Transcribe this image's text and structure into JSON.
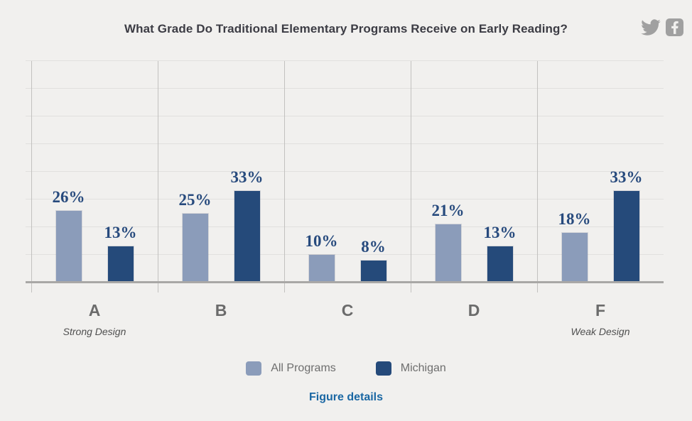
{
  "page": {
    "title": "What Grade Do Traditional Elementary Programs Receive on Early Reading?",
    "figure_details_label": "Figure details"
  },
  "icons": [
    {
      "name": "twitter-icon"
    },
    {
      "name": "facebook-icon"
    }
  ],
  "colors": {
    "background": "#f1f0ee",
    "all_programs_bar": "#8b9cba",
    "michigan_bar": "#254a7a",
    "value_label": "#274a7d",
    "category_label": "#6b6b6b",
    "link": "#1a67a3",
    "social_icon": "#a0a0a0"
  },
  "legend": [
    {
      "label": "All Programs",
      "color": "#8b9cba"
    },
    {
      "label": "Michigan",
      "color": "#254a7a"
    }
  ],
  "chart_data": {
    "type": "bar",
    "title": "What Grade Do Traditional Elementary Programs Receive on Early Reading?",
    "categories": [
      "A",
      "B",
      "C",
      "D",
      "F"
    ],
    "series": [
      {
        "name": "All Programs",
        "color": "#8b9cba",
        "values": [
          26,
          25,
          10,
          21,
          18
        ]
      },
      {
        "name": "Michigan",
        "color": "#254a7a",
        "values": [
          13,
          33,
          8,
          13,
          33
        ]
      }
    ],
    "value_suffix": "%",
    "annotations": [
      {
        "category": "A",
        "text": "Strong Design"
      },
      {
        "category": "F",
        "text": "Weak Design"
      }
    ],
    "xlabel": "",
    "ylabel": "",
    "ylim": [
      0,
      80
    ],
    "gridline_step": 10,
    "grid": true,
    "legend_position": "bottom"
  }
}
